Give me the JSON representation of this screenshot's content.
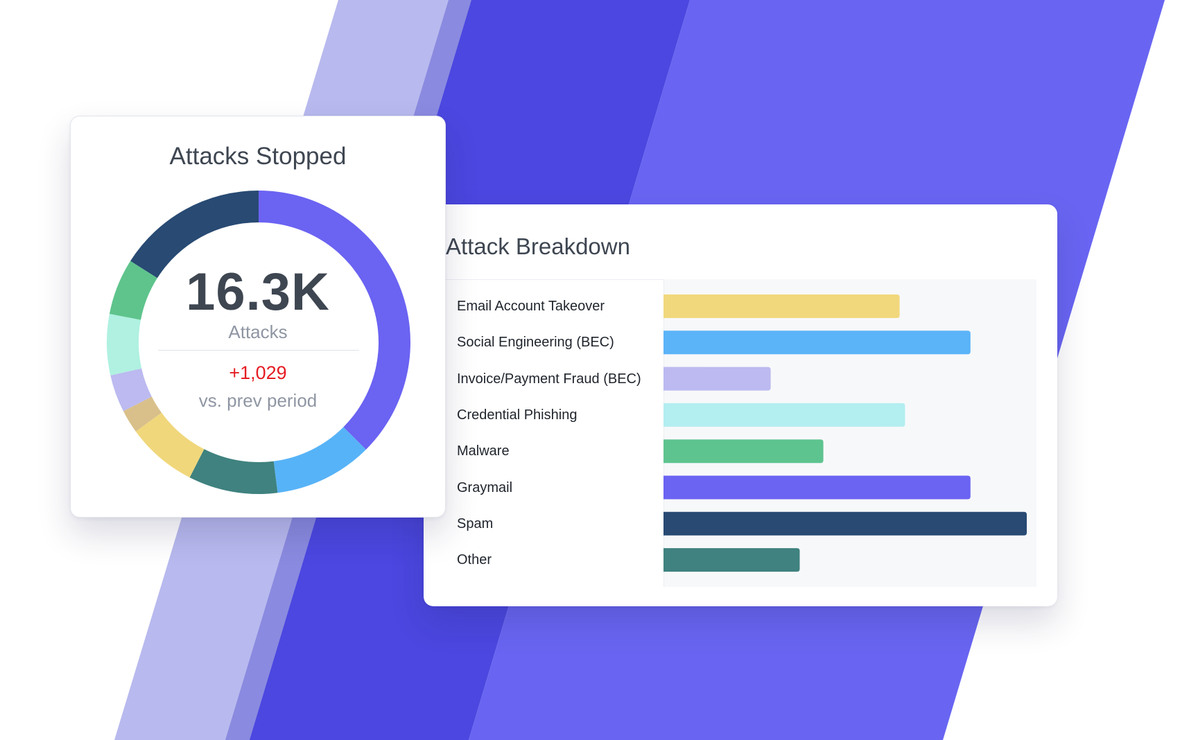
{
  "colors": {
    "bg_light": "#b8b9ee",
    "bg_mid": "#8a8ae0",
    "bg_dark": "#4b47e0",
    "bg_bright": "#6965f2"
  },
  "donut_card": {
    "title": "Attacks Stopped",
    "value": "16.3K",
    "unit": "Attacks",
    "delta": "+1,029",
    "delta_label": "vs. prev period"
  },
  "breakdown_card": {
    "title": "Attack Breakdown"
  },
  "chart_data": [
    {
      "type": "pie",
      "variant": "donut",
      "title": "Attacks Stopped",
      "total_label": "16.3K",
      "slices": [
        {
          "name": "Graymail",
          "value": 37.5,
          "color": "#6b63f2"
        },
        {
          "name": "Social Engineering (BEC)",
          "value": 10.5,
          "color": "#57b3f7"
        },
        {
          "name": "Other",
          "value": 9.5,
          "color": "#3f827f"
        },
        {
          "name": "Email Account Takeover",
          "value": 7.5,
          "color": "#f0d77b"
        },
        {
          "name": "Unlabeled segment",
          "value": 2.5,
          "color": "#d9c08a"
        },
        {
          "name": "Invoice/Payment Fraud (BEC)",
          "value": 4.0,
          "color": "#bcbaf0"
        },
        {
          "name": "Credential Phishing",
          "value": 6.5,
          "color": "#b0f1e1"
        },
        {
          "name": "Malware",
          "value": 6.0,
          "color": "#5ec48c"
        },
        {
          "name": "Spam",
          "value": 16.0,
          "color": "#284a73"
        }
      ]
    },
    {
      "type": "bar",
      "orientation": "horizontal",
      "title": "Attack Breakdown",
      "xlim": [
        0,
        100
      ],
      "categories": [
        "Email Account Takeover",
        "Social Engineering (BEC)",
        "Invoice/Payment Fraud (BEC)",
        "Credential Phishing",
        "Malware",
        "Graymail",
        "Spam",
        "Other"
      ],
      "values": [
        65,
        84.5,
        29.5,
        66.5,
        44,
        84.5,
        100,
        37.5
      ],
      "colors": [
        "#f1d87d",
        "#5bb3f8",
        "#bcbaf0",
        "#b3eef0",
        "#5ec48f",
        "#6b63f2",
        "#284a73",
        "#3f827f"
      ]
    }
  ]
}
